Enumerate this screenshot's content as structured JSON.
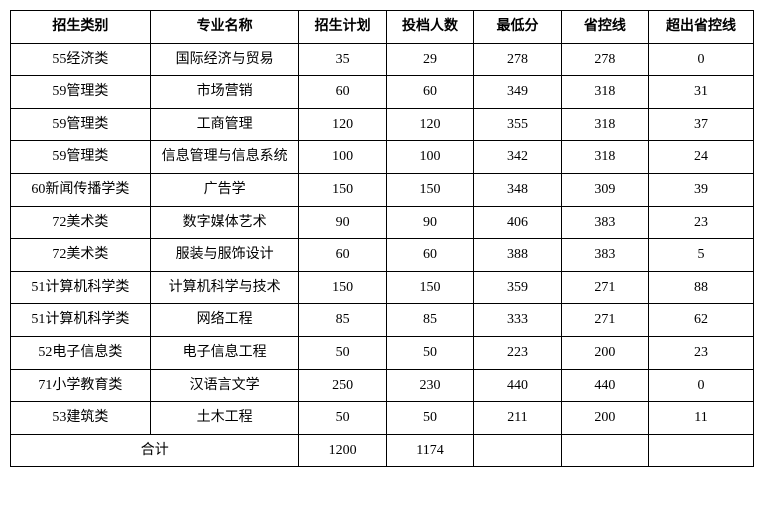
{
  "table": {
    "columns": [
      "招生类别",
      "专业名称",
      "招生计划",
      "投档人数",
      "最低分",
      "省控线",
      "超出省控线"
    ],
    "rows": [
      [
        "55经济类",
        "国际经济与贸易",
        "35",
        "29",
        "278",
        "278",
        "0"
      ],
      [
        "59管理类",
        "市场营销",
        "60",
        "60",
        "349",
        "318",
        "31"
      ],
      [
        "59管理类",
        "工商管理",
        "120",
        "120",
        "355",
        "318",
        "37"
      ],
      [
        "59管理类",
        "信息管理与信息系统",
        "100",
        "100",
        "342",
        "318",
        "24"
      ],
      [
        "60新闻传播学类",
        "广告学",
        "150",
        "150",
        "348",
        "309",
        "39"
      ],
      [
        "72美术类",
        "数字媒体艺术",
        "90",
        "90",
        "406",
        "383",
        "23"
      ],
      [
        "72美术类",
        "服装与服饰设计",
        "60",
        "60",
        "388",
        "383",
        "5"
      ],
      [
        "51计算机科学类",
        "计算机科学与技术",
        "150",
        "150",
        "359",
        "271",
        "88"
      ],
      [
        "51计算机科学类",
        "网络工程",
        "85",
        "85",
        "333",
        "271",
        "62"
      ],
      [
        "52电子信息类",
        "电子信息工程",
        "50",
        "50",
        "223",
        "200",
        "23"
      ],
      [
        "71小学教育类",
        "汉语言文学",
        "250",
        "230",
        "440",
        "440",
        "0"
      ],
      [
        "53建筑类",
        "土木工程",
        "50",
        "50",
        "211",
        "200",
        "11"
      ]
    ],
    "total_label": "合计",
    "total_plan": "1200",
    "total_admit": "1174",
    "header_fontsize": 14,
    "cell_fontsize": 14,
    "border_color": "#000000",
    "background_color": "#ffffff",
    "text_color": "#000000"
  }
}
